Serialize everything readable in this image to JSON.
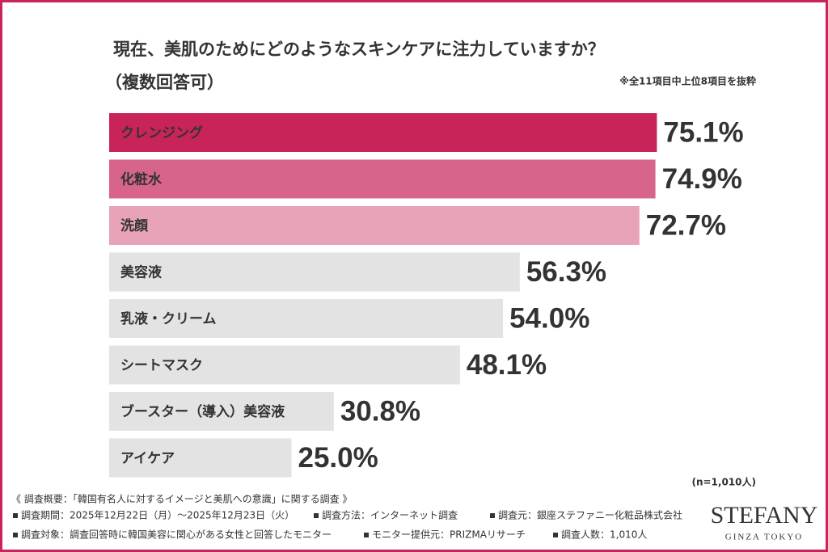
{
  "chart_data": {
    "type": "bar",
    "orientation": "horizontal",
    "title": "現在、美肌のためにどのようなスキンケアに注力していますか？",
    "subtitle": "（複数回答可）",
    "note": "※全11項目中上位8項目を抜粋",
    "sample": "(n=1,010人)",
    "categories": [
      "クレンジング",
      "化粧水",
      "洗顔",
      "美容液",
      "乳液・クリーム",
      "シートマスク",
      "ブースター（導入）美容液",
      "アイケア"
    ],
    "values": [
      75.1,
      74.9,
      72.7,
      56.3,
      54.0,
      48.1,
      30.8,
      25.0
    ],
    "value_labels": [
      "75.1%",
      "74.9%",
      "72.7%",
      "56.3%",
      "54.0%",
      "48.1%",
      "30.8%",
      "25.0%"
    ],
    "colors": [
      "#c8245a",
      "#d7648a",
      "#e8a3b8",
      "#e3e3e3",
      "#e3e3e3",
      "#e3e3e3",
      "#e3e3e3",
      "#e3e3e3"
    ],
    "category_label_colors": [
      "#ffffff",
      "#ffffff",
      "#ffffff",
      "#444444",
      "#444444",
      "#444444",
      "#444444",
      "#444444"
    ],
    "value_label_colors": [
      "#c8245a",
      "#d7648a",
      "#e8a3b8",
      "#555555",
      "#555555",
      "#555555",
      "#555555",
      "#555555"
    ]
  },
  "footer": {
    "heading": "《 調査概要：「韓国有名人に対するイメージと美肌への意識」に関する調査 》",
    "items": [
      "調査期間：2025年12月22日（月）～2025年12月23日（火）",
      "調査方法：インターネット調査",
      "調査元：銀座ステファニー化粧品株式会社",
      "調査対象：調査回答時に韓国美容に関心がある女性と回答したモニター",
      "モニター提供元：PRIZMAリサーチ",
      "調査人数：1,010人"
    ]
  },
  "logo": {
    "name": "STEFANY",
    "tagline": "GINZA TOKYO"
  }
}
